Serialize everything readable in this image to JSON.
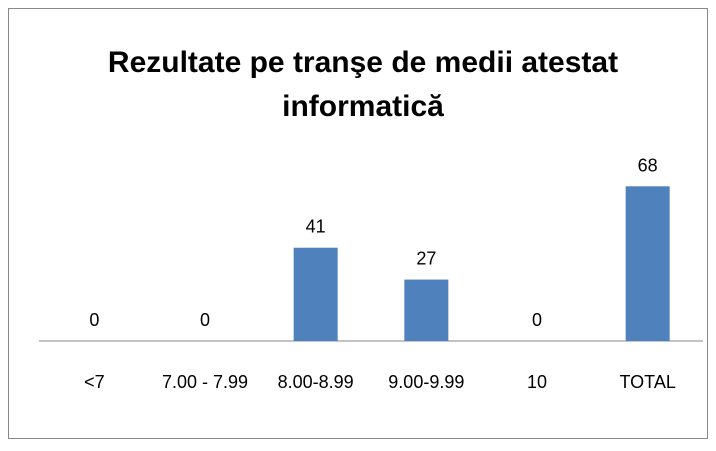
{
  "chart_data": {
    "type": "bar",
    "title": "Rezultate pe tranşe de medii atestat informatică",
    "categories": [
      "<7",
      "7.00 - 7.99",
      "8.00-8.99",
      "9.00-9.99",
      "10",
      "TOTAL"
    ],
    "values": [
      0,
      0,
      41,
      27,
      0,
      68
    ],
    "color": "#4f81bd",
    "ylim": [
      0,
      80
    ],
    "grid": false
  }
}
